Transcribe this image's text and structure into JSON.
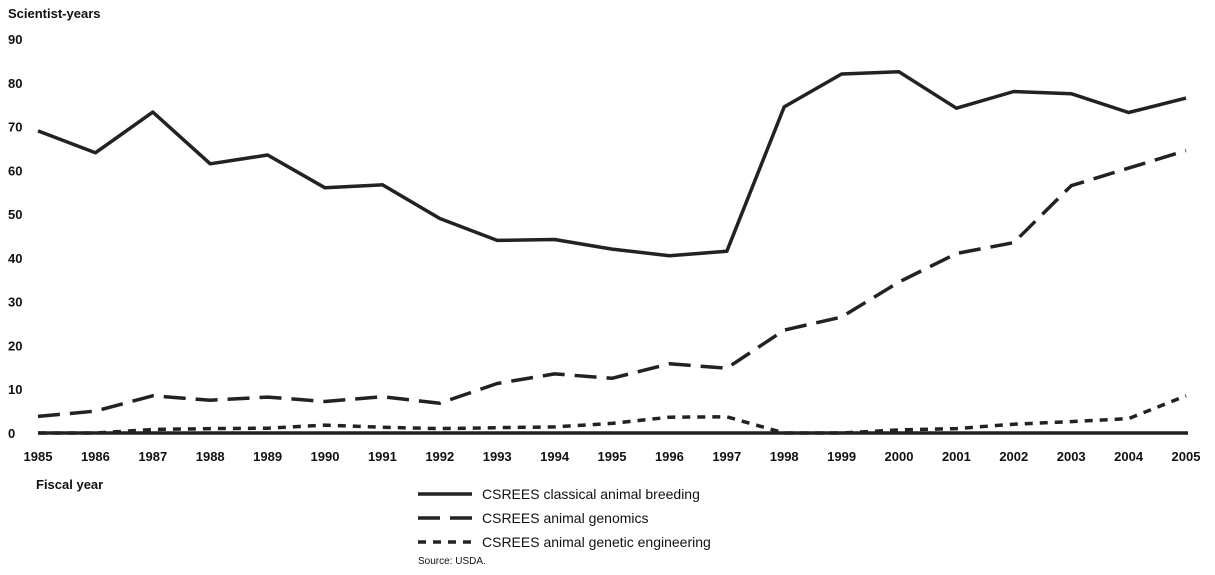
{
  "chart_data": {
    "type": "line",
    "ylabel": "Scientist-years",
    "xlabel": "Fiscal year",
    "ylim": [
      0,
      90
    ],
    "yticks": [
      0,
      10,
      20,
      30,
      40,
      50,
      60,
      70,
      80,
      90
    ],
    "x": [
      1985,
      1986,
      1987,
      1988,
      1989,
      1990,
      1991,
      1992,
      1993,
      1994,
      1995,
      1996,
      1997,
      1998,
      1999,
      2000,
      2001,
      2002,
      2003,
      2004,
      2005
    ],
    "grid": false,
    "legend_position": "bottom-center",
    "series": [
      {
        "name": "CSREES classical animal breeding",
        "style": "solid",
        "values": [
          69,
          64,
          73.3,
          61.5,
          63.5,
          56,
          56.7,
          49,
          44,
          44.2,
          42,
          40.5,
          41.5,
          74.5,
          82,
          82.5,
          74.2,
          78,
          77.5,
          73.2,
          76.5
        ]
      },
      {
        "name": "CSREES animal genomics",
        "style": "dashed",
        "values": [
          3.8,
          5,
          8.5,
          7.5,
          8.2,
          7.2,
          8.3,
          6.8,
          11.3,
          13.5,
          12.5,
          15.8,
          14.8,
          23.5,
          26.5,
          34.5,
          41,
          43.5,
          56.5,
          60.5,
          64.5
        ]
      },
      {
        "name": "CSREES animal genetic engineering",
        "style": "dotted",
        "values": [
          0,
          0,
          0.8,
          1,
          1.1,
          1.8,
          1.3,
          1,
          1.2,
          1.4,
          2.2,
          3.6,
          3.7,
          0,
          0,
          0.7,
          1,
          2,
          2.6,
          3.3,
          8.5
        ]
      }
    ]
  },
  "source": "Source: USDA.",
  "colors": {
    "line": "#222222",
    "text": "#111111"
  }
}
